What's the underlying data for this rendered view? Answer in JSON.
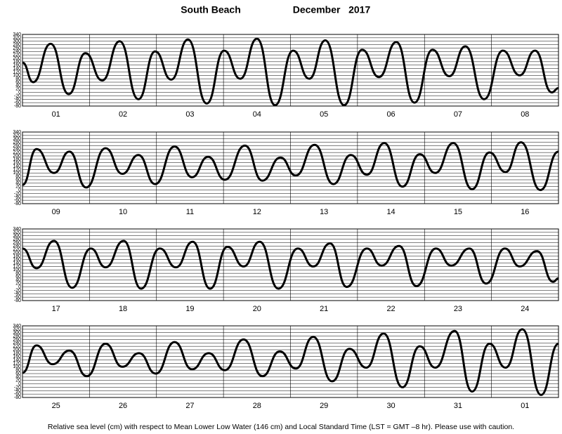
{
  "header": {
    "location": "South Beach",
    "date": "December   2017"
  },
  "footer": "Relative sea level (cm) with respect to Mean Lower Low Water (146 cm) and Local Standard Time (LST = GMT –8 hr). Please use with caution.",
  "chart_data": [
    {
      "type": "line",
      "categories": [
        "01",
        "02",
        "03",
        "04",
        "05",
        "06",
        "07",
        "08"
      ],
      "x": [
        0,
        0.16,
        0.42,
        0.69,
        0.94,
        1.19,
        1.45,
        1.73,
        1.98,
        2.22,
        2.47,
        2.75,
        3.01,
        3.25,
        3.5,
        3.77,
        4.04,
        4.28,
        4.52,
        4.8,
        5.07,
        5.32,
        5.58,
        5.85,
        6.12,
        6.37,
        6.61,
        6.89,
        7.17,
        7.42,
        7.65,
        7.9,
        8
      ],
      "values": [
        175,
        60,
        285,
        -10,
        230,
        70,
        300,
        -40,
        240,
        75,
        310,
        -65,
        245,
        80,
        315,
        -75,
        245,
        80,
        305,
        -75,
        250,
        90,
        295,
        -60,
        250,
        95,
        270,
        -40,
        245,
        100,
        245,
        0,
        25
      ],
      "color": "#000000",
      "xlim": [
        0,
        8
      ],
      "xticks": [
        0,
        1,
        2,
        3,
        4,
        5,
        6,
        7,
        8
      ],
      "ylim": [
        -80,
        340
      ],
      "yticks": [
        340,
        320,
        300,
        280,
        260,
        240,
        220,
        200,
        180,
        160,
        140,
        120,
        100,
        80,
        60,
        40,
        20,
        0,
        -20,
        -40,
        -60,
        -80
      ],
      "grid": true
    },
    {
      "type": "line",
      "categories": [
        "09",
        "10",
        "11",
        "12",
        "13",
        "14",
        "15",
        "16"
      ],
      "x": [
        0,
        0.21,
        0.47,
        0.7,
        0.95,
        1.24,
        1.49,
        1.73,
        1.98,
        2.27,
        2.53,
        2.77,
        3.02,
        3.32,
        3.58,
        3.85,
        4.08,
        4.36,
        4.64,
        4.9,
        5.14,
        5.4,
        5.67,
        5.93,
        6.16,
        6.43,
        6.71,
        6.97,
        7.21,
        7.44,
        7.73,
        8
      ],
      "values": [
        30,
        240,
        100,
        225,
        15,
        245,
        95,
        205,
        35,
        255,
        75,
        195,
        60,
        260,
        55,
        190,
        85,
        265,
        35,
        205,
        90,
        275,
        20,
        210,
        100,
        275,
        5,
        220,
        105,
        280,
        0,
        225
      ],
      "color": "#000000",
      "xlim": [
        0,
        8
      ],
      "xticks": [
        0,
        1,
        2,
        3,
        4,
        5,
        6,
        7,
        8
      ],
      "ylim": [
        -80,
        340
      ],
      "yticks": [
        340,
        320,
        300,
        280,
        260,
        240,
        220,
        200,
        180,
        160,
        140,
        120,
        100,
        80,
        60,
        40,
        20,
        0,
        -20,
        -40,
        -60,
        -80
      ],
      "grid": true
    },
    {
      "type": "line",
      "categories": [
        "17",
        "18",
        "19",
        "20",
        "21",
        "22",
        "23",
        "24"
      ],
      "x": [
        0,
        0.21,
        0.47,
        0.74,
        1.02,
        1.24,
        1.51,
        1.77,
        2.05,
        2.29,
        2.54,
        2.8,
        3.06,
        3.3,
        3.54,
        3.82,
        4.11,
        4.34,
        4.59,
        4.84,
        5.14,
        5.36,
        5.62,
        5.88,
        6.17,
        6.4,
        6.67,
        6.92,
        7.2,
        7.42,
        7.68,
        7.92,
        8
      ],
      "values": [
        225,
        110,
        270,
        -5,
        225,
        115,
        270,
        -10,
        225,
        115,
        265,
        -10,
        235,
        120,
        265,
        -10,
        225,
        120,
        255,
        0,
        225,
        125,
        240,
        5,
        225,
        125,
        225,
        20,
        225,
        120,
        210,
        30,
        50
      ],
      "color": "#000000",
      "xlim": [
        0,
        8
      ],
      "xticks": [
        0,
        1,
        2,
        3,
        4,
        5,
        6,
        7,
        8
      ],
      "ylim": [
        -80,
        340
      ],
      "yticks": [
        340,
        320,
        300,
        280,
        260,
        240,
        220,
        200,
        180,
        160,
        140,
        120,
        100,
        80,
        60,
        40,
        20,
        0,
        -20,
        -40,
        -60,
        -80
      ],
      "grid": true
    },
    {
      "type": "line",
      "categories": [
        "25",
        "26",
        "27",
        "28",
        "29",
        "30",
        "31",
        "01"
      ],
      "x": [
        0,
        0.21,
        0.45,
        0.7,
        0.96,
        1.24,
        1.49,
        1.74,
        1.99,
        2.27,
        2.53,
        2.78,
        3.02,
        3.3,
        3.58,
        3.84,
        4.08,
        4.34,
        4.62,
        4.88,
        5.13,
        5.39,
        5.67,
        5.93,
        6.16,
        6.45,
        6.71,
        6.97,
        7.21,
        7.46,
        7.74,
        8
      ],
      "values": [
        65,
        225,
        115,
        195,
        45,
        235,
        100,
        180,
        60,
        245,
        85,
        180,
        80,
        260,
        45,
        190,
        90,
        275,
        15,
        205,
        95,
        295,
        -20,
        220,
        95,
        310,
        -45,
        235,
        95,
        320,
        -65,
        235
      ],
      "color": "#000000",
      "xlim": [
        0,
        8
      ],
      "xticks": [
        0,
        1,
        2,
        3,
        4,
        5,
        6,
        7,
        8
      ],
      "ylim": [
        -80,
        340
      ],
      "yticks": [
        340,
        320,
        300,
        280,
        260,
        240,
        220,
        200,
        180,
        160,
        140,
        120,
        100,
        80,
        60,
        40,
        20,
        0,
        -20,
        -40,
        -60,
        -80
      ],
      "grid": true
    }
  ]
}
